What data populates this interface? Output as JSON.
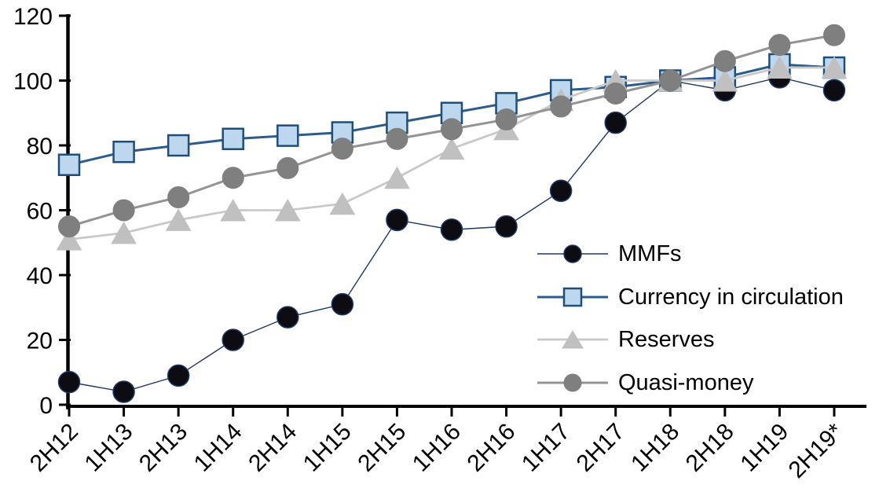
{
  "chart_data": {
    "type": "line",
    "title": "",
    "xlabel": "",
    "ylabel": "",
    "grid": false,
    "legend_position": "inside-right",
    "ylim": [
      0,
      120
    ],
    "yticks": [
      0,
      20,
      40,
      60,
      80,
      100,
      120
    ],
    "categories": [
      "2H12",
      "1H13",
      "2H13",
      "1H14",
      "2H14",
      "1H15",
      "2H15",
      "1H16",
      "2H16",
      "1H17",
      "2H17",
      "1H18",
      "2H18",
      "1H19",
      "2H19*"
    ],
    "series": [
      {
        "name": "MMFs",
        "values": [
          7,
          4,
          9,
          20,
          27,
          31,
          57,
          54,
          55,
          66,
          87,
          100,
          97,
          101,
          97
        ],
        "marker": "circle",
        "marker_size": 27,
        "marker_fill": "#0c0c12",
        "marker_stroke": "#1f3864",
        "marker_stroke_width": 1.5,
        "line_color": "#1f3864",
        "line_width": 1.4
      },
      {
        "name": "Currency in circulation",
        "values": [
          74,
          78,
          80,
          82,
          83,
          84,
          87,
          90,
          93,
          97,
          98,
          100,
          101,
          105,
          104
        ],
        "marker": "square",
        "marker_size": 26,
        "marker_fill": "#bdd7ee",
        "marker_stroke": "#1f4e79",
        "marker_stroke_width": 2.5,
        "line_color": "#2e5c8a",
        "line_width": 3
      },
      {
        "name": "Reserves",
        "values": [
          51,
          53,
          57,
          60,
          60,
          62,
          70,
          79,
          85,
          94,
          100,
          100,
          100,
          104,
          104
        ],
        "marker": "triangle",
        "marker_size": 27,
        "marker_fill": "#c0c0c0",
        "marker_stroke": "#c0c0c0",
        "marker_stroke_width": 1,
        "line_color": "#c9c9c9",
        "line_width": 2.8
      },
      {
        "name": "Quasi-money",
        "values": [
          55,
          60,
          64,
          70,
          73,
          79,
          82,
          85,
          88,
          92,
          96,
          100,
          106,
          111,
          114
        ],
        "marker": "circle",
        "marker_size": 27,
        "marker_fill": "#7f7f7f",
        "marker_stroke": "#7f7f7f",
        "marker_stroke_width": 1,
        "line_color": "#949494",
        "line_width": 3
      }
    ],
    "axis_color": "#000000",
    "text_color": "#000000"
  }
}
